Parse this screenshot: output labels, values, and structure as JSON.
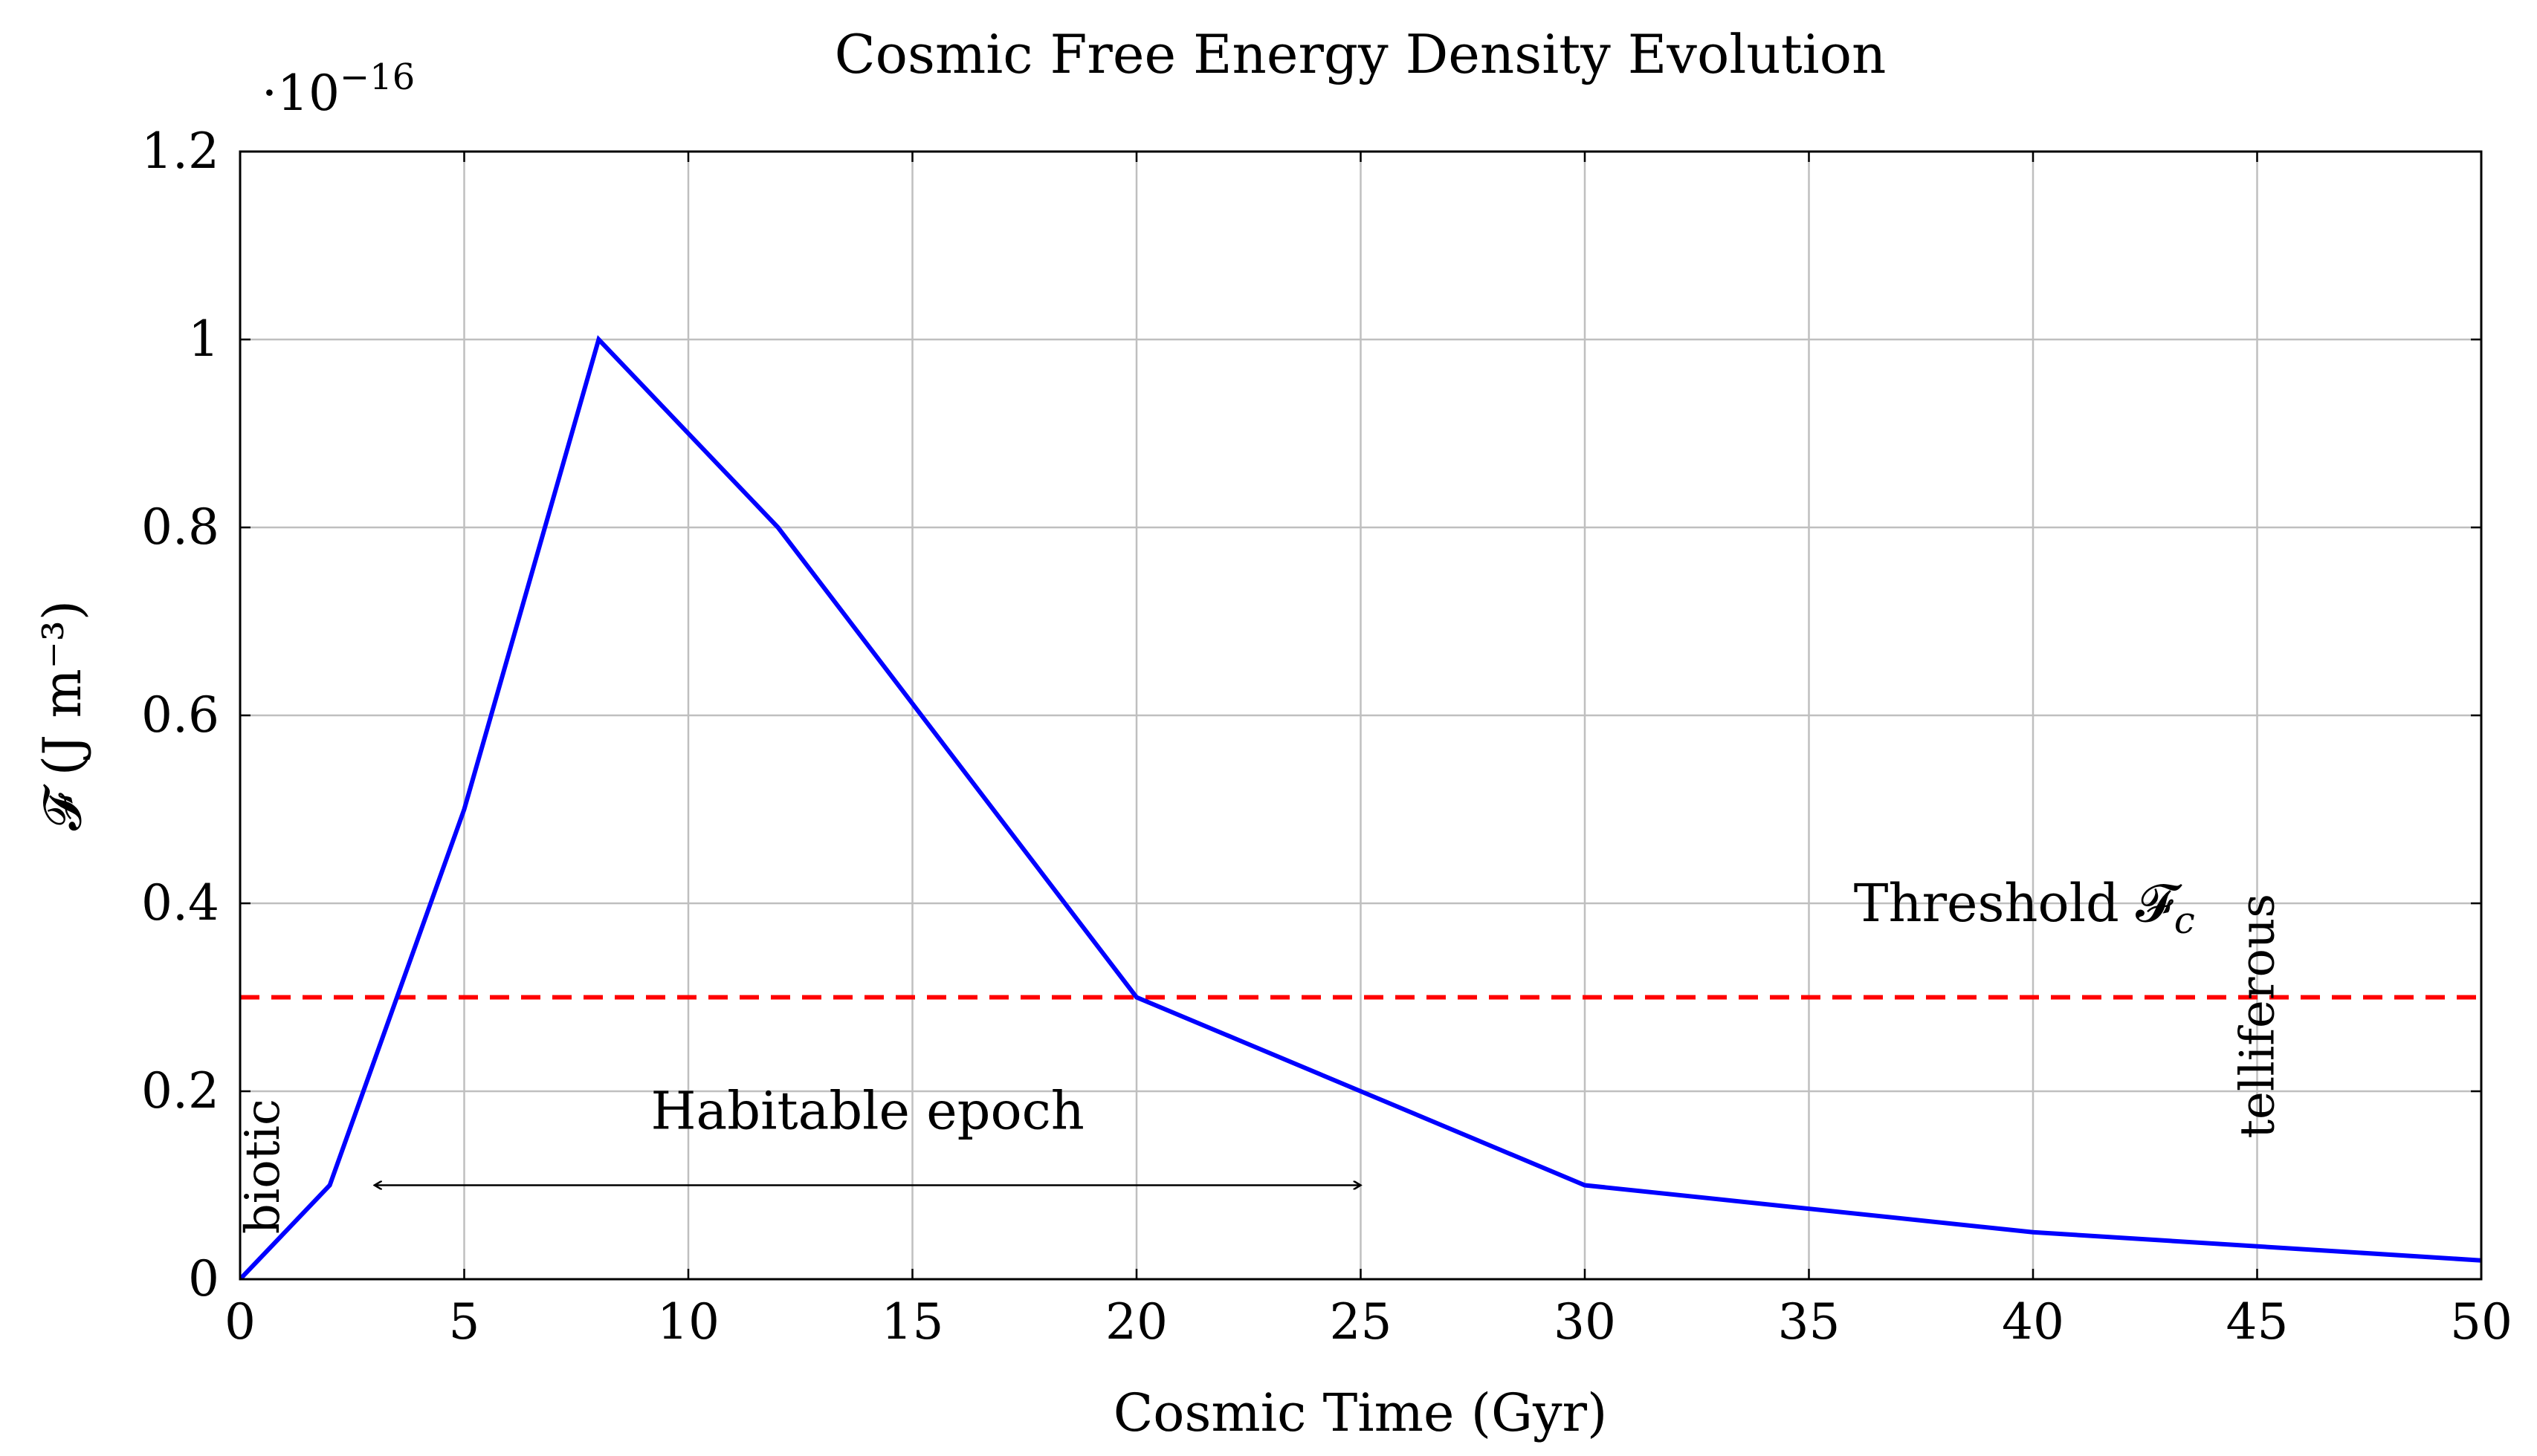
{
  "chart_data": {
    "type": "line",
    "title": "Cosmic Free Energy Density Evolution",
    "xlabel": "Cosmic Time (Gyr)",
    "ylabel": "𝓕 (J m⁻³)",
    "y_multiplier": {
      "base": "·10",
      "exponent": "−16"
    },
    "xlim": [
      0,
      50
    ],
    "ylim": [
      0,
      1.2
    ],
    "grid": true,
    "x_ticks": [
      0,
      5,
      10,
      15,
      20,
      25,
      30,
      35,
      40,
      45,
      50
    ],
    "x_tick_labels": [
      "0",
      "5",
      "10",
      "15",
      "20",
      "25",
      "30",
      "35",
      "40",
      "45",
      "50"
    ],
    "y_ticks": [
      0,
      0.2,
      0.4,
      0.6,
      0.8,
      1.0,
      1.2
    ],
    "y_tick_labels": [
      "0",
      "0.2",
      "0.4",
      "0.6",
      "0.8",
      "1",
      "1.2"
    ],
    "series": [
      {
        "color": "#0000ff",
        "x": [
          0,
          2,
          5,
          8,
          12,
          20,
          25,
          30,
          40,
          50
        ],
        "y": [
          0,
          0.1,
          0.5,
          1.0,
          0.8,
          0.3,
          0.2,
          0.1,
          0.05,
          0.02
        ]
      }
    ],
    "threshold": {
      "value": 0.3,
      "color": "#ff0000",
      "label_text": "Threshold 𝓕",
      "label_sub": "c",
      "label_x": 36,
      "label_y": 0.4
    },
    "annotations": [
      {
        "text": "Habitable epoch",
        "x": 14,
        "y": 0.16
      },
      {
        "text": "biotic",
        "x": 0.5,
        "y": 0.12,
        "rotated": true
      },
      {
        "text": "telliferous",
        "x": 45,
        "y": 0.28,
        "rotated": true
      }
    ],
    "range_arrow": {
      "x_start": 3,
      "x_end": 25,
      "y": 0.1
    }
  }
}
